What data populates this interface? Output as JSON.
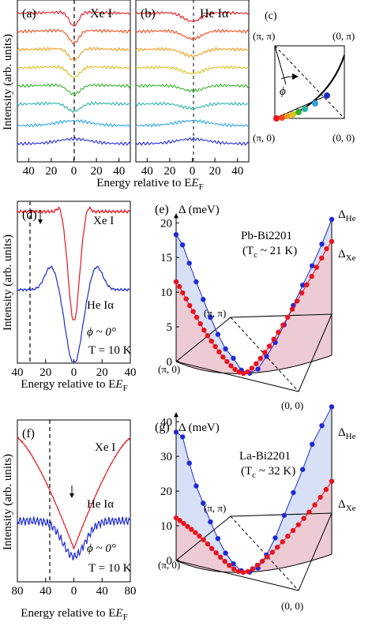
{
  "colors": {
    "xe": "#e8141e",
    "he": "#1f2ad6",
    "blue_fill": "#c9d6f2",
    "red_fill": "#f4c4c8",
    "axis": "#000000"
  },
  "panels": {
    "a": {
      "label": "(a)",
      "title": "Xe I"
    },
    "b": {
      "label": "(b)",
      "title": "He Iα"
    },
    "c": {
      "label": "(c)",
      "corner_tl": "(π, π)",
      "corner_tr": "(0, π)",
      "corner_bl": "(π, 0)",
      "corner_br": "(0, 0)",
      "angle": "ϕ"
    },
    "ab_ylabel": "Intensity (arb. units)",
    "ab_xlabel": "Energy relative to E",
    "ab_xlabel_sub": "F",
    "d": {
      "label": "(d)",
      "xe": "Xe I",
      "he": "He Iα",
      "phi": "ϕ ~ 0°",
      "temp": "T = 10 K"
    },
    "f": {
      "label": "(f)",
      "xe": "Xe I",
      "he": "He Iα",
      "phi": "ϕ ~ 0°",
      "temp": "T = 10 K"
    },
    "df_ylabel": "Intensity (arb. units)",
    "df_xlabel": "Energy relative to E",
    "df_xlabel_sub": "F",
    "e": {
      "label": "(e)",
      "axis": "Δ (meV)",
      "sample": "Pb-Bi2201",
      "tc": "(T",
      "tc_sub": "c",
      "tc_val": " ~ 21 K)",
      "he": "Δ",
      "he_sub": "He",
      "xe": "Δ",
      "xe_sub": "Xe",
      "pipi": "(π, π)",
      "pi0": "(π, 0)",
      "zero": "(0, 0)"
    },
    "g": {
      "label": "(g)",
      "axis": "Δ (meV)",
      "sample": "La-Bi2201",
      "tc": "(T",
      "tc_sub": "c",
      "tc_val": " ~ 32 K)",
      "he": "Δ",
      "he_sub": "He",
      "xe": "Δ",
      "xe_sub": "Xe",
      "pipi": "(π, π)",
      "pi0": "(π, 0)",
      "zero": "(0, 0)"
    }
  },
  "chart_data": [
    {
      "panel": "a",
      "type": "line",
      "xlim": [
        -50,
        50
      ],
      "xticks": [
        40,
        20,
        0,
        20,
        40
      ],
      "curves": 8,
      "dashed_at": 0,
      "series_colors": [
        "#e8141e",
        "#ee4a1a",
        "#f59b1a",
        "#d7c21c",
        "#33b52a",
        "#2ab4a5",
        "#29a3e6",
        "#1f2ad6"
      ]
    },
    {
      "panel": "b",
      "type": "line",
      "xlim": [
        -50,
        50
      ],
      "xticks": [
        40,
        20,
        0,
        20,
        40
      ],
      "curves": 8,
      "dashed_at": 0,
      "series_colors": [
        "#e8141e",
        "#ee4a1a",
        "#f59b1a",
        "#d7c21c",
        "#33b52a",
        "#2ab4a5",
        "#29a3e6",
        "#1f2ad6"
      ]
    },
    {
      "panel": "c",
      "type": "scatter",
      "point_colors": [
        "#e8141e",
        "#ee4a1a",
        "#f59b1a",
        "#d7c21c",
        "#33b52a",
        "#2ab4a5",
        "#29a3e6",
        "#1f2ad6"
      ]
    },
    {
      "panel": "d",
      "type": "line",
      "xlim": [
        40,
        -40
      ],
      "xticks": [
        40,
        20,
        0,
        20,
        40
      ],
      "dashed_at": 18,
      "arrow_at": 10,
      "series": [
        {
          "name": "Xe I",
          "gap": 10
        },
        {
          "name": "He Iα",
          "gap": 18
        }
      ]
    },
    {
      "panel": "e",
      "type": "scatter",
      "ylim": [
        0,
        20
      ],
      "yticks": [
        0,
        5,
        10,
        15,
        20
      ],
      "series": [
        {
          "name": "He",
          "values": [
            18.3,
            17.2,
            14.9,
            12.5,
            10.2,
            7.8,
            5.5,
            3.5,
            2.2,
            0.5,
            0.0,
            0.5,
            2.2,
            4.0,
            6.3,
            8.8,
            11.4,
            13.8,
            16.5,
            19.6
          ]
        },
        {
          "name": "Xe",
          "values": [
            11.5,
            11.0,
            10.3,
            9.6,
            8.8,
            8.1,
            7.4,
            6.6,
            5.8,
            5.1,
            4.4,
            3.7,
            3.0,
            2.3,
            1.7,
            1.1,
            0.6,
            0.2,
            0.0,
            0.2,
            0.7,
            1.3,
            2.0,
            2.8,
            3.6,
            4.5,
            5.4,
            6.3,
            7.3,
            8.3,
            9.3,
            10.3,
            11.3,
            12.3,
            13.4,
            14.5,
            15.6,
            16.4
          ]
        }
      ]
    },
    {
      "panel": "f",
      "type": "line",
      "xlim": [
        80,
        -80
      ],
      "xticks": [
        80,
        40,
        0,
        40,
        80
      ],
      "dashed_at": 40,
      "arrow_at": 15,
      "series": [
        {
          "name": "Xe I",
          "gap": 15
        },
        {
          "name": "He Iα",
          "gap": 40
        }
      ]
    },
    {
      "panel": "g",
      "type": "scatter",
      "ylim": [
        0,
        40
      ],
      "yticks": [
        0,
        10,
        20,
        30,
        40
      ],
      "series": [
        {
          "name": "He",
          "values": [
            37.0,
            36.4,
            29.5,
            23.5,
            19.0,
            14.0,
            9.5,
            5.5,
            2.5,
            0.5,
            0.0,
            1.0,
            4.5,
            9.0,
            15.0,
            21.0,
            27.0,
            33.5,
            38.0,
            42.5
          ]
        },
        {
          "name": "Xe",
          "values": [
            12.3,
            12.0,
            11.6,
            11.1,
            10.6,
            10.0,
            9.3,
            8.5,
            7.5,
            6.4,
            5.3,
            4.2,
            3.1,
            2.0,
            1.0,
            0.3,
            0.0,
            0.2,
            0.9,
            1.8,
            2.8,
            3.9,
            5.0,
            6.2,
            7.5,
            8.8,
            10.1,
            11.4,
            12.8,
            14.2,
            15.8,
            17.5,
            19.2,
            21.0
          ]
        }
      ]
    }
  ]
}
